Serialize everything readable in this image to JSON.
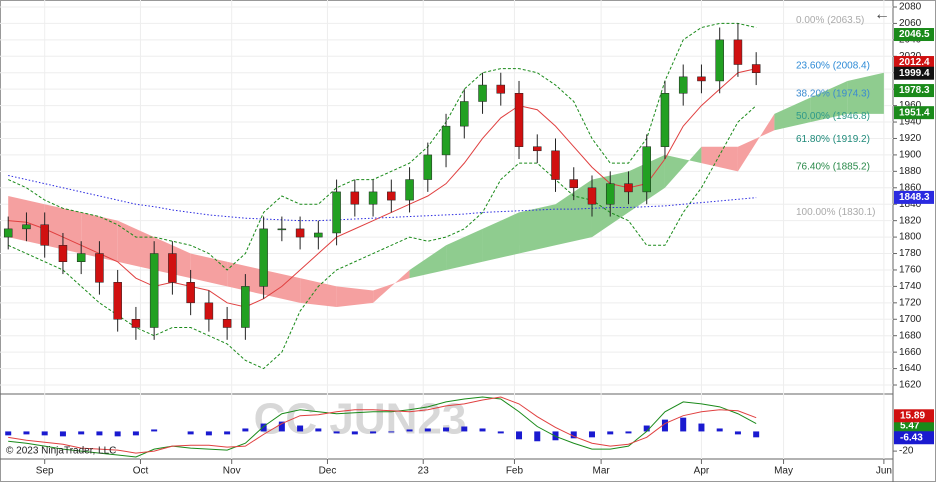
{
  "chart_data": [
    {
      "type": "candlestick",
      "xlim": [
        -1.8,
        194
      ],
      "xticks": [
        {
          "value": 8,
          "label": "Sep"
        },
        {
          "value": 29,
          "label": "Oct"
        },
        {
          "value": 49,
          "label": "Nov"
        },
        {
          "value": 70,
          "label": "Dec"
        },
        {
          "value": 91,
          "label": "23"
        },
        {
          "value": 111,
          "label": "Feb"
        },
        {
          "value": 130,
          "label": "Mar"
        },
        {
          "value": 152,
          "label": "Apr"
        },
        {
          "value": 170,
          "label": "May"
        },
        {
          "value": 192,
          "label": "Jun"
        }
      ],
      "ylim": [
        1611.5,
        2088.5
      ],
      "yticks": [
        1620,
        1640,
        1660,
        1680,
        1700,
        1720,
        1740,
        1760,
        1780,
        1800,
        1820,
        1840,
        1860,
        1880,
        1900,
        1920,
        1940,
        1960,
        1980,
        2000,
        2020,
        2040,
        2060,
        2080
      ],
      "grid": true,
      "up_color": "#22a022",
      "down_color": "#d01010",
      "x": [
        0,
        4,
        8,
        12,
        16,
        20,
        24,
        28,
        32,
        36,
        40,
        44,
        48,
        52,
        56,
        60,
        64,
        68,
        72,
        76,
        80,
        84,
        88,
        92,
        96,
        100,
        104,
        108,
        112,
        116,
        120,
        124,
        128,
        132,
        136,
        140,
        144,
        148,
        152,
        156,
        160,
        164
      ],
      "open": [
        1800,
        1810,
        1815,
        1790,
        1770,
        1780,
        1745,
        1700,
        1690,
        1780,
        1745,
        1720,
        1700,
        1690,
        1740,
        1810,
        1810,
        1800,
        1805,
        1855,
        1840,
        1855,
        1845,
        1870,
        1900,
        1935,
        1965,
        1985,
        1975,
        1910,
        1905,
        1870,
        1860,
        1840,
        1865,
        1855,
        1910,
        1975,
        1995,
        1990,
        2040,
        2010
      ],
      "high": [
        1825,
        1830,
        1830,
        1805,
        1795,
        1795,
        1760,
        1715,
        1795,
        1795,
        1760,
        1735,
        1715,
        1755,
        1825,
        1825,
        1825,
        1820,
        1870,
        1870,
        1870,
        1870,
        1885,
        1915,
        1950,
        1980,
        2000,
        2000,
        1990,
        1925,
        1920,
        1885,
        1875,
        1880,
        1880,
        1925,
        1990,
        2010,
        2010,
        2055,
        2060,
        2025
      ],
      "low": [
        1785,
        1795,
        1775,
        1755,
        1755,
        1730,
        1685,
        1675,
        1675,
        1730,
        1705,
        1685,
        1675,
        1675,
        1725,
        1795,
        1785,
        1785,
        1790,
        1825,
        1825,
        1830,
        1830,
        1855,
        1885,
        1920,
        1950,
        1960,
        1895,
        1890,
        1855,
        1845,
        1825,
        1825,
        1840,
        1840,
        1895,
        1960,
        1975,
        1975,
        1995,
        1985
      ],
      "close": [
        1810,
        1815,
        1790,
        1770,
        1780,
        1745,
        1700,
        1690,
        1780,
        1745,
        1720,
        1700,
        1690,
        1740,
        1810,
        1810,
        1800,
        1805,
        1855,
        1840,
        1855,
        1845,
        1870,
        1900,
        1935,
        1965,
        1985,
        1975,
        1910,
        1905,
        1870,
        1860,
        1840,
        1865,
        1855,
        1910,
        1975,
        1995,
        1990,
        2040,
        2010,
        2000
      ],
      "series": [
        {
          "color": "#e04040",
          "style": "solid",
          "values": [
            1820,
            1818,
            1810,
            1800,
            1790,
            1780,
            1770,
            1750,
            1740,
            1745,
            1740,
            1735,
            1720,
            1715,
            1725,
            1740,
            1760,
            1780,
            1800,
            1810,
            1820,
            1830,
            1840,
            1850,
            1865,
            1890,
            1920,
            1945,
            1960,
            1955,
            1935,
            1910,
            1885,
            1865,
            1860,
            1865,
            1895,
            1935,
            1960,
            1980,
            2000,
            2005
          ]
        },
        {
          "color": "#1a8a1a",
          "style": "dashed",
          "values": [
            1870,
            1860,
            1845,
            1835,
            1830,
            1825,
            1815,
            1800,
            1800,
            1795,
            1790,
            1780,
            1760,
            1780,
            1830,
            1850,
            1840,
            1840,
            1860,
            1870,
            1870,
            1880,
            1890,
            1910,
            1940,
            1980,
            2000,
            2005,
            2005,
            2000,
            1985,
            1965,
            1920,
            1890,
            1890,
            1920,
            1990,
            2040,
            2055,
            2060,
            2060,
            2055
          ]
        },
        {
          "color": "#1a8a1a",
          "style": "dashed",
          "values": [
            1790,
            1780,
            1770,
            1760,
            1740,
            1720,
            1705,
            1690,
            1680,
            1690,
            1690,
            1680,
            1670,
            1650,
            1640,
            1660,
            1710,
            1740,
            1760,
            1770,
            1780,
            1790,
            1800,
            1795,
            1800,
            1810,
            1830,
            1870,
            1890,
            1890,
            1870,
            1850,
            1845,
            1830,
            1820,
            1790,
            1790,
            1830,
            1860,
            1900,
            1940,
            1960
          ]
        },
        {
          "color": "#2a2ae0",
          "style": "dotted",
          "values": [
            1875,
            1870,
            1865,
            1860,
            1855,
            1850,
            1845,
            1840,
            1837,
            1833,
            1830,
            1827,
            1825,
            1823,
            1822,
            1821,
            1820,
            1820,
            1821,
            1822,
            1823,
            1824,
            1825,
            1826,
            1827,
            1828,
            1830,
            1831,
            1832,
            1833,
            1834,
            1834,
            1835,
            1836,
            1836,
            1837,
            1838,
            1840,
            1842,
            1844,
            1846,
            1848
          ]
        }
      ],
      "cloud": {
        "up_color": "#8fcc8f",
        "down_color": "#f5a0a0",
        "x": [
          0,
          8,
          16,
          24,
          32,
          40,
          48,
          56,
          64,
          72,
          80,
          88,
          96,
          104,
          112,
          120,
          128,
          136,
          144,
          152,
          160,
          168,
          176,
          184,
          192
        ],
        "span_a": [
          1800,
          1790,
          1780,
          1770,
          1760,
          1750,
          1740,
          1730,
          1720,
          1715,
          1720,
          1760,
          1790,
          1810,
          1830,
          1840,
          1870,
          1880,
          1900,
          1890,
          1880,
          1950,
          1970,
          1990,
          2000
        ],
        "span_b": [
          1850,
          1840,
          1830,
          1820,
          1800,
          1780,
          1770,
          1760,
          1750,
          1740,
          1735,
          1750,
          1760,
          1770,
          1780,
          1790,
          1800,
          1830,
          1860,
          1910,
          1910,
          1930,
          1940,
          1950,
          1950
        ]
      },
      "fib_levels": [
        {
          "label": "0.00% (2063.5)",
          "price": 2063.5,
          "color": "#aaaaaa"
        },
        {
          "label": "23.60% (2008.4)",
          "price": 2008.4,
          "color": "#2e8bd6"
        },
        {
          "label": "38.20% (1974.3)",
          "price": 1974.3,
          "color": "#3b8bd0"
        },
        {
          "label": "50.00% (1946.8)",
          "price": 1946.8,
          "color": "#2f9a8a"
        },
        {
          "label": "61.80% (1919.2)",
          "price": 1919.2,
          "color": "#1f8a7a"
        },
        {
          "label": "76.40% (1885.2)",
          "price": 1885.2,
          "color": "#2a8a4a"
        },
        {
          "label": "100.00% (1830.1)",
          "price": 1830.1,
          "color": "#aaaaaa"
        }
      ],
      "price_markers": [
        {
          "value": 2046.5,
          "color": "#1a8a1a"
        },
        {
          "value": 2012.4,
          "color": "#d01010"
        },
        {
          "value": 1999.4,
          "color": "#111111"
        },
        {
          "value": 1978.3,
          "color": "#1a8a1a"
        },
        {
          "value": 1951.4,
          "color": "#1a8a1a"
        },
        {
          "value": 1848.3,
          "color": "#2a2ae0"
        }
      ]
    },
    {
      "type": "macd",
      "ylim": [
        -26,
        35
      ],
      "yticks": [
        -20
      ],
      "hist_color": "#1a1ad0",
      "x": [
        0,
        4,
        8,
        12,
        16,
        20,
        24,
        28,
        32,
        36,
        40,
        44,
        48,
        52,
        56,
        60,
        64,
        68,
        72,
        76,
        80,
        84,
        88,
        92,
        96,
        100,
        104,
        108,
        112,
        116,
        120,
        124,
        128,
        132,
        136,
        140,
        144,
        148,
        152,
        156,
        160,
        164
      ],
      "histogram": [
        -4,
        -3,
        -4,
        -5,
        -3,
        -4,
        -5,
        -4,
        2,
        0,
        -3,
        -4,
        -3,
        3,
        8,
        10,
        6,
        3,
        -2,
        -3,
        -2,
        -1,
        2,
        3,
        4,
        5,
        3,
        -2,
        -8,
        -10,
        -9,
        -7,
        -6,
        -3,
        -2,
        6,
        12,
        14,
        8,
        3,
        -3,
        -6
      ],
      "series": [
        {
          "color": "#1a8a1a",
          "values": [
            -10,
            -12,
            -15,
            -18,
            -20,
            -22,
            -24,
            -26,
            -18,
            -15,
            -17,
            -18,
            -19,
            -12,
            5,
            18,
            22,
            20,
            18,
            19,
            20,
            20,
            22,
            25,
            30,
            33,
            35,
            33,
            20,
            5,
            -5,
            -12,
            -18,
            -18,
            -15,
            0,
            20,
            30,
            28,
            25,
            18,
            8
          ]
        },
        {
          "color": "#e04040",
          "values": [
            -6,
            -9,
            -11,
            -13,
            -17,
            -18,
            -19,
            -22,
            -20,
            -15,
            -14,
            -14,
            -16,
            -15,
            -3,
            8,
            16,
            17,
            20,
            22,
            22,
            21,
            20,
            22,
            26,
            28,
            32,
            35,
            28,
            15,
            4,
            -5,
            -12,
            -15,
            -13,
            -6,
            8,
            16,
            20,
            22,
            21,
            14
          ]
        }
      ],
      "markers": [
        {
          "value": 5.47,
          "color": "#1a8a1a"
        },
        {
          "value": 15.89,
          "color": "#d01010"
        },
        {
          "value": -6.43,
          "color": "#1a1ad0"
        }
      ]
    }
  ],
  "watermark": "CC JUN23",
  "copyright": "© 2023 NinjaTrader, LLC",
  "back_icon": "←"
}
